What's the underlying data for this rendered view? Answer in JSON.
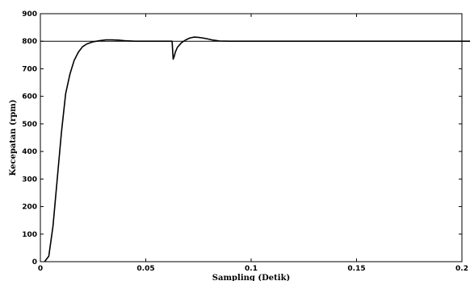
{
  "chart_data": {
    "type": "line",
    "title": "",
    "xlabel": "Sampling (Detik)",
    "ylabel": "Kecepatan (rpm)",
    "xlim": [
      0,
      0.2
    ],
    "ylim": [
      0,
      900
    ],
    "xticks": [
      0,
      0.05,
      0.1,
      0.15,
      0.2
    ],
    "xtick_labels": [
      "0",
      "0.05",
      "0.1",
      "0.15",
      "0.2"
    ],
    "yticks": [
      0,
      100,
      200,
      300,
      400,
      500,
      600,
      700,
      800,
      900
    ],
    "ytick_labels": [
      "0",
      "100",
      "200",
      "300",
      "400",
      "500",
      "600",
      "700",
      "800",
      "900"
    ],
    "grid": false,
    "legend": "none",
    "series": [
      {
        "role": "reference",
        "color": "#000000",
        "x": [
          0,
          0.2
        ],
        "y": [
          800,
          800
        ]
      },
      {
        "role": "response",
        "color": "#000000",
        "x": [
          0.002,
          0.004,
          0.006,
          0.008,
          0.01,
          0.012,
          0.014,
          0.016,
          0.018,
          0.02,
          0.022,
          0.025,
          0.028,
          0.031,
          0.034,
          0.037,
          0.04,
          0.045,
          0.05,
          0.055,
          0.06,
          0.0625,
          0.0628,
          0.063,
          0.0635,
          0.064,
          0.065,
          0.067,
          0.069,
          0.071,
          0.073,
          0.075,
          0.077,
          0.079,
          0.082,
          0.085,
          0.09,
          0.1,
          0.12,
          0.15,
          0.18,
          0.2,
          0.212
        ],
        "y": [
          0,
          20,
          130,
          300,
          470,
          610,
          680,
          730,
          760,
          780,
          790,
          798,
          802,
          805,
          805,
          804,
          802,
          800,
          800,
          800,
          800,
          800,
          760,
          735,
          745,
          760,
          778,
          795,
          805,
          812,
          815,
          814,
          812,
          809,
          804,
          801,
          800,
          800,
          800,
          800,
          800,
          800,
          800
        ]
      }
    ]
  }
}
